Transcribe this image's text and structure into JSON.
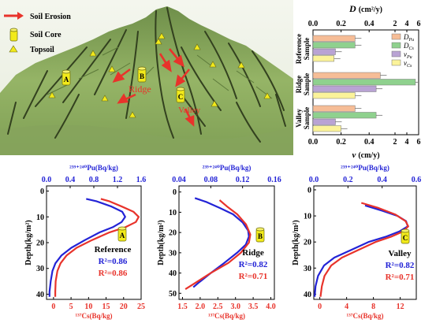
{
  "colors": {
    "red": "#e8332b",
    "blue": "#2323d6",
    "dr": "#f6bd97",
    "dc": "#8fd18e",
    "vpu": "#b9a3d4",
    "vcs": "#fbf39a",
    "landscape_dark": "#4d6b33",
    "landscape_light": "#aac87b",
    "marker_yellow": "#f2ea1b"
  },
  "legend": {
    "soil_erosion": "Soil Erosion",
    "soil_core": "Soil Core",
    "topsoil": "Topsoil"
  },
  "landscape": {
    "site_a": "A",
    "site_b": "B",
    "site_c": "C",
    "ridge_label": "Ridge",
    "valley_label": "Valley"
  },
  "chart_data": [
    {
      "type": "bar",
      "orientation": "horizontal",
      "top_axis_label": "D",
      "top_axis_unit": "(cm²/y)",
      "bottom_axis_label": "v",
      "bottom_axis_unit": "(cm/y)",
      "top_ticks": [
        "0.0",
        "0.2",
        "0.4",
        "2",
        "4",
        "6"
      ],
      "bottom_ticks": [
        "0.0",
        "0.2",
        "0.4",
        "2",
        "4",
        "6"
      ],
      "scale": "piecewise: linear 0-0.5, then 0.5-6",
      "groups": [
        "Reference Sample",
        "Ridge Sample",
        "Valley Sample"
      ],
      "series": [
        {
          "name": "D_Pu",
          "legend": "D",
          "legend_sub": "Pu",
          "values": [
            0.3,
            0.48,
            0.3
          ]
        },
        {
          "name": "D_Cs",
          "legend": "D",
          "legend_sub": "Cs",
          "values": [
            0.3,
            5.5,
            0.45
          ]
        },
        {
          "name": "v_Pu",
          "legend": "v",
          "legend_sub": "Pu",
          "values": [
            0.16,
            0.45,
            0.16
          ]
        },
        {
          "name": "v_Cs",
          "legend": "v",
          "legend_sub": "Cs",
          "values": [
            0.15,
            0.3,
            0.2
          ]
        }
      ],
      "legend_position": "top-right"
    },
    {
      "type": "line",
      "panel": "Reference",
      "marker": "A",
      "top_axis_label": "²³⁹⁺²⁴⁰Pu(Bq/kg)",
      "top_ticks": [
        "0.0",
        "0.4",
        "0.8",
        "1.2",
        "1.6"
      ],
      "xlim_top": [
        0,
        1.6
      ],
      "bottom_axis_label": "¹³⁷Cs(Bq/kg)",
      "bottom_ticks": [
        "0",
        "5",
        "10",
        "15",
        "20",
        "25"
      ],
      "xlim_bottom": [
        -2,
        25
      ],
      "ylabel": "Depth(kg/m²)",
      "y_ticks": [
        "0",
        "10",
        "20",
        "30",
        "40"
      ],
      "ylim": [
        -2,
        42
      ],
      "r2_blue": "R²=0.86",
      "r2_red": "R²=0.86",
      "series": [
        {
          "color": "blue",
          "axis": "top",
          "points": [
            [
              0.67,
              3
            ],
            [
              0.85,
              4
            ],
            [
              1.1,
              6
            ],
            [
              1.28,
              8
            ],
            [
              1.33,
              10
            ],
            [
              1.27,
              12
            ],
            [
              1.12,
              14
            ],
            [
              0.9,
              16
            ],
            [
              0.65,
              19
            ],
            [
              0.42,
              22
            ],
            [
              0.25,
              25
            ],
            [
              0.15,
              28
            ],
            [
              0.1,
              31
            ],
            [
              0.07,
              35
            ],
            [
              0.05,
              39
            ],
            [
              0.05,
              41
            ]
          ]
        },
        {
          "color": "red",
          "axis": "bottom",
          "points": [
            [
              13.5,
              3
            ],
            [
              16,
              4
            ],
            [
              19.5,
              6
            ],
            [
              22.8,
              8
            ],
            [
              24.3,
              10
            ],
            [
              23.5,
              12
            ],
            [
              20.5,
              14
            ],
            [
              16,
              16
            ],
            [
              11,
              19
            ],
            [
              6.6,
              22
            ],
            [
              3.7,
              25
            ],
            [
              2,
              28
            ],
            [
              1.1,
              31
            ],
            [
              0.6,
              35
            ],
            [
              0.5,
              39
            ],
            [
              0.5,
              41
            ]
          ]
        }
      ]
    },
    {
      "type": "line",
      "panel": "Ridge",
      "marker": "B",
      "top_axis_label": "²³⁹⁺²⁴⁰Pu(Bq/kg)",
      "top_ticks": [
        "0.04",
        "0.08",
        "0.12",
        "0.16"
      ],
      "xlim_top": [
        0.04,
        0.16
      ],
      "bottom_axis_label": "¹³⁷Cs(Bq/kg)",
      "bottom_ticks": [
        "1.5",
        "2.0",
        "2.5",
        "3.0",
        "3.5",
        "4.0"
      ],
      "xlim_bottom": [
        1.4,
        4.1
      ],
      "ylabel": "Depth(kg/m²)",
      "y_ticks": [
        "0",
        "10",
        "20",
        "30",
        "40",
        "50"
      ],
      "ylim": [
        -3,
        53
      ],
      "r2_blue": "R²=0.82",
      "r2_red": "R²=0.71",
      "series": [
        {
          "color": "blue",
          "axis": "top",
          "points": [
            [
              0.06,
              3
            ],
            [
              0.075,
              5
            ],
            [
              0.092,
              8
            ],
            [
              0.108,
              11
            ],
            [
              0.12,
              15
            ],
            [
              0.127,
              19
            ],
            [
              0.128,
              22
            ],
            [
              0.124,
              26
            ],
            [
              0.113,
              30
            ],
            [
              0.097,
              35
            ],
            [
              0.08,
              40
            ],
            [
              0.064,
              45
            ],
            [
              0.058,
              47
            ]
          ]
        },
        {
          "color": "red",
          "axis": "bottom",
          "points": [
            [
              2.55,
              4
            ],
            [
              2.75,
              7
            ],
            [
              3.05,
              11
            ],
            [
              3.3,
              16
            ],
            [
              3.42,
              21
            ],
            [
              3.38,
              25
            ],
            [
              3.15,
              30
            ],
            [
              2.8,
              35
            ],
            [
              2.3,
              40
            ],
            [
              1.85,
              45
            ],
            [
              1.58,
              48
            ]
          ]
        }
      ]
    },
    {
      "type": "line",
      "panel": "Valley",
      "marker": "C",
      "top_axis_label": "²³⁹⁺²⁴⁰Pu(Bq/kg)",
      "top_ticks": [
        "0.0",
        "0.2",
        "0.4",
        "0.6"
      ],
      "xlim_top": [
        0,
        0.6
      ],
      "bottom_axis_label": "¹³⁷Cs(Bq/kg)",
      "bottom_ticks": [
        "0",
        "4",
        "8",
        "12"
      ],
      "xlim_bottom": [
        -0.9,
        14.4
      ],
      "ylabel": "Depth(kg/m²)",
      "y_ticks": [
        "0",
        "10",
        "20",
        "30",
        "40"
      ],
      "ylim": [
        -1.5,
        42
      ],
      "r2_blue": "R²=0.82",
      "r2_red": "R²=0.71",
      "series": [
        {
          "color": "blue",
          "axis": "top",
          "points": [
            [
              0.3,
              6
            ],
            [
              0.4,
              8
            ],
            [
              0.49,
              10
            ],
            [
              0.54,
              12
            ],
            [
              0.55,
              14
            ],
            [
              0.5,
              16
            ],
            [
              0.42,
              18
            ],
            [
              0.32,
              20
            ],
            [
              0.22,
              23
            ],
            [
              0.12,
              26
            ],
            [
              0.06,
              29
            ],
            [
              0.025,
              33
            ],
            [
              0.01,
              37
            ],
            [
              0.005,
              41
            ]
          ]
        },
        {
          "color": "red",
          "axis": "bottom",
          "points": [
            [
              6.2,
              5
            ],
            [
              8.8,
              7
            ],
            [
              11.3,
              9.5
            ],
            [
              12.8,
              12
            ],
            [
              13.2,
              14
            ],
            [
              12.4,
              16
            ],
            [
              10.6,
              18
            ],
            [
              8.3,
              20
            ],
            [
              5.8,
              23
            ],
            [
              3.3,
              26
            ],
            [
              1.7,
              29
            ],
            [
              0.7,
              33
            ],
            [
              0.3,
              37
            ],
            [
              0.1,
              41
            ]
          ]
        }
      ]
    }
  ]
}
